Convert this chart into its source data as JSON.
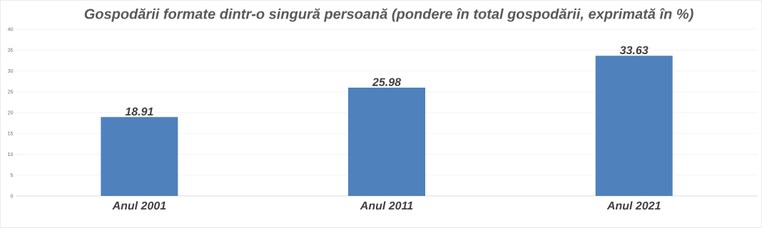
{
  "chart_data": {
    "type": "bar",
    "title": "Gospodării formate dintr-o singură persoană  (pondere în total gospodării, exprimată în %)",
    "categories": [
      "Anul 2001",
      "Anul 2011",
      "Anul 2021"
    ],
    "values": [
      18.91,
      25.98,
      33.63
    ],
    "color": "#4f81bd",
    "data_labels": true,
    "grid": "y",
    "ylim": [
      0,
      40
    ],
    "yticks": [
      0,
      5,
      10,
      15,
      20,
      25,
      30,
      35,
      40
    ]
  }
}
